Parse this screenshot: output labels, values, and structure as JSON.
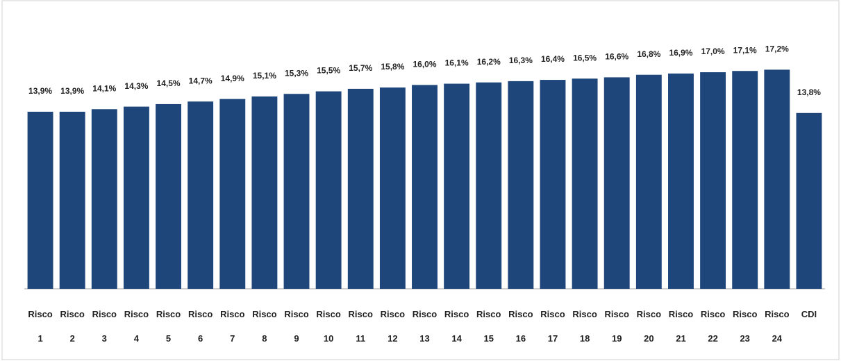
{
  "chart_data": {
    "type": "bar",
    "categories": [
      "Risco 1",
      "Risco 2",
      "Risco 3",
      "Risco 4",
      "Risco 5",
      "Risco 6",
      "Risco 7",
      "Risco 8",
      "Risco 9",
      "Risco 10",
      "Risco 11",
      "Risco 12",
      "Risco 13",
      "Risco 14",
      "Risco 15",
      "Risco 16",
      "Risco 17",
      "Risco 18",
      "Risco 19",
      "Risco 20",
      "Risco 21",
      "Risco 22",
      "Risco 23",
      "Risco 24",
      "CDI"
    ],
    "values": [
      13.9,
      13.9,
      14.1,
      14.3,
      14.5,
      14.7,
      14.9,
      15.1,
      15.3,
      15.5,
      15.7,
      15.8,
      16.0,
      16.1,
      16.2,
      16.3,
      16.4,
      16.5,
      16.6,
      16.8,
      16.9,
      17.0,
      17.1,
      17.2,
      13.8
    ],
    "value_labels": [
      "13,9%",
      "13,9%",
      "14,1%",
      "14,3%",
      "14,5%",
      "14,7%",
      "14,9%",
      "15,1%",
      "15,3%",
      "15,5%",
      "15,7%",
      "15,8%",
      "16,0%",
      "16,1%",
      "16,2%",
      "16,3%",
      "16,4%",
      "16,5%",
      "16,6%",
      "16,8%",
      "16,9%",
      "17,0%",
      "17,1%",
      "17,2%",
      "13,8%"
    ],
    "color": "#1f467b",
    "ylim": [
      0,
      20
    ]
  }
}
